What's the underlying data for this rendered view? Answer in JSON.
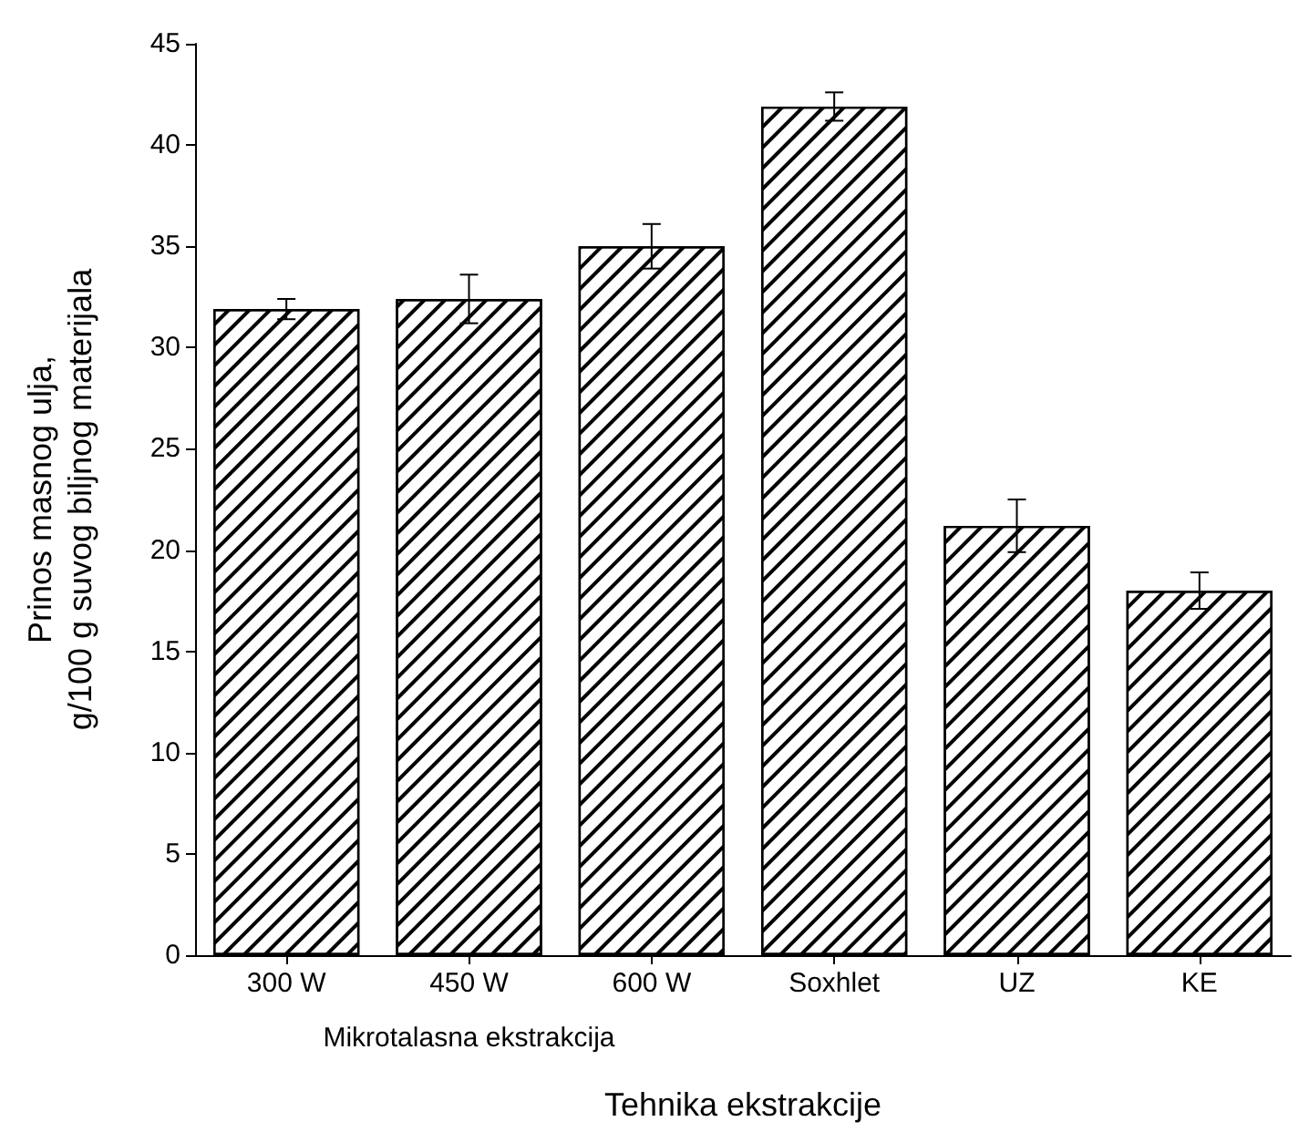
{
  "chart_data": {
    "type": "bar",
    "xlabel": "Tehnika ekstrakcije",
    "ylabel": "Prinos masnog ulja,\ng/100 g suvog biljnog materijala",
    "categories": [
      "300 W",
      "450 W",
      "600 W",
      "Soxhlet",
      "UZ",
      "KE"
    ],
    "values": [
      31.9,
      32.4,
      35.0,
      41.9,
      21.2,
      18.0
    ],
    "errors": [
      0.5,
      1.2,
      1.1,
      0.7,
      1.3,
      0.9
    ],
    "color": "#ffffff",
    "ylim": [
      0,
      45
    ],
    "yticks": [
      0,
      5,
      10,
      15,
      20,
      25,
      30,
      35,
      40,
      45
    ],
    "annotations": [
      "Mikrotalasna ekstrakcija"
    ],
    "grid": false
  }
}
